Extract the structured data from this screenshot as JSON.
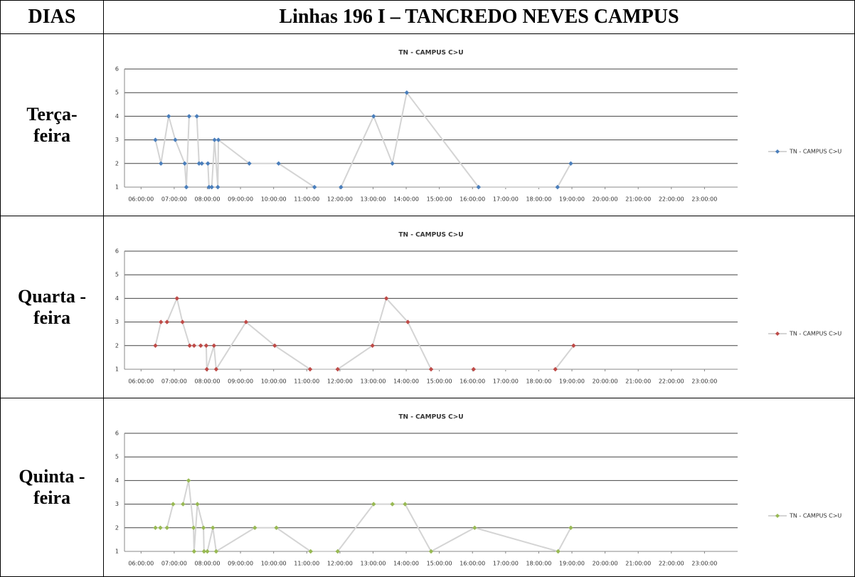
{
  "table": {
    "headers": [
      "DIAS",
      "Linhas 196 I – TANCREDO NEVES CAMPUS"
    ],
    "days": [
      "Terça-feira",
      "Quarta -feira",
      "Quinta -feira"
    ]
  },
  "chart_data": [
    {
      "type": "line",
      "title": "TN - CAMPUS C>U",
      "line_color": "#d4d4d4",
      "grid": true,
      "legend": "right",
      "xlim": [
        "05:30:00",
        "24:00:00"
      ],
      "ylim": [
        1,
        6
      ],
      "yticks": [
        1,
        2,
        3,
        4,
        5,
        6
      ],
      "xticks": [
        "06:00:00",
        "07:00:00",
        "08:00:00",
        "09:00:00",
        "10:00:00",
        "11:00:00",
        "12:00:00",
        "13:00:00",
        "14:00:00",
        "15:00:00",
        "16:00:00",
        "17:00:00",
        "18:00:00",
        "19:00:00",
        "20:00:00",
        "21:00:00",
        "22:00:00",
        "23:00:00"
      ],
      "x": [
        "06:26:00",
        "06:36:00",
        "06:50:00",
        "07:02:00",
        "07:19:00",
        "07:22:00",
        "07:27:00",
        "07:41:00",
        "07:45:00",
        "07:50:00",
        "08:01:00",
        "08:03:00",
        "08:08:00",
        "08:13:00",
        "08:19:00",
        "08:20:00",
        "09:16:00",
        "10:09:00",
        "11:14:00",
        "12:02:00",
        "13:01:00",
        "13:35:00",
        "14:01:00",
        "16:11:00",
        "18:34:00",
        "18:58:00"
      ],
      "series": [
        {
          "name": "TN - CAMPUS C>U",
          "color": "#4a7ebb",
          "values": [
            3,
            2,
            4,
            3,
            2,
            1,
            4,
            4,
            2,
            2,
            2,
            1,
            1,
            3,
            1,
            3,
            2,
            2,
            1,
            1,
            4,
            2,
            5,
            1,
            1,
            2
          ]
        }
      ]
    },
    {
      "type": "line",
      "title": "TN - CAMPUS C>U",
      "line_color": "#d4d4d4",
      "grid": true,
      "legend": "right",
      "xlim": [
        "05:30:00",
        "24:00:00"
      ],
      "ylim": [
        1,
        6
      ],
      "yticks": [
        1,
        2,
        3,
        4,
        5,
        6
      ],
      "xticks": [
        "06:00:00",
        "07:00:00",
        "08:00:00",
        "09:00:00",
        "10:00:00",
        "11:00:00",
        "12:00:00",
        "13:00:00",
        "14:00:00",
        "15:00:00",
        "16:00:00",
        "17:00:00",
        "18:00:00",
        "19:00:00",
        "20:00:00",
        "21:00:00",
        "22:00:00",
        "23:00:00"
      ],
      "x": [
        "06:26:00",
        "06:36:00",
        "06:47:00",
        "07:05:00",
        "07:15:00",
        "07:28:00",
        "07:36:00",
        "07:48:00",
        "07:58:00",
        "07:59:00",
        "08:12:00",
        "08:16:00",
        "09:10:00",
        "10:02:00",
        "11:06:00",
        "11:56:00",
        "12:59:00",
        "13:24:00",
        "14:03:00",
        "14:45:00",
        "16:02:00",
        "18:30:00",
        "19:03:00"
      ],
      "series": [
        {
          "name": "TN - CAMPUS C>U",
          "color": "#be4b48",
          "values": [
            2,
            3,
            3,
            4,
            3,
            2,
            2,
            2,
            2,
            1,
            2,
            1,
            3,
            2,
            1,
            1,
            2,
            4,
            3,
            1,
            1,
            1,
            2
          ]
        }
      ]
    },
    {
      "type": "line",
      "title": "TN - CAMPUS C>U",
      "line_color": "#d4d4d4",
      "grid": true,
      "legend": "right",
      "xlim": [
        "05:30:00",
        "24:00:00"
      ],
      "ylim": [
        1,
        6
      ],
      "yticks": [
        1,
        2,
        3,
        4,
        5,
        6
      ],
      "xticks": [
        "06:00:00",
        "07:00:00",
        "08:00:00",
        "09:00:00",
        "10:00:00",
        "11:00:00",
        "12:00:00",
        "13:00:00",
        "14:00:00",
        "15:00:00",
        "16:00:00",
        "17:00:00",
        "18:00:00",
        "19:00:00",
        "20:00:00",
        "21:00:00",
        "22:00:00",
        "23:00:00"
      ],
      "x": [
        "06:26:00",
        "06:35:00",
        "06:47:00",
        "06:58:00",
        "07:16:00",
        "07:26:00",
        "07:35:00",
        "07:36:00",
        "07:42:00",
        "07:53:00",
        "07:54:00",
        "08:00:00",
        "08:10:00",
        "08:16:00",
        "09:26:00",
        "10:05:00",
        "11:07:00",
        "11:56:00",
        "13:01:00",
        "13:35:00",
        "13:58:00",
        "14:45:00",
        "16:04:00",
        "18:35:00",
        "18:58:00"
      ],
      "series": [
        {
          "name": "TN - CAMPUS C>U",
          "color": "#98b954",
          "values": [
            2,
            2,
            2,
            3,
            3,
            4,
            2,
            1,
            3,
            2,
            1,
            1,
            2,
            1,
            2,
            2,
            1,
            1,
            3,
            3,
            3,
            1,
            2,
            1,
            2
          ]
        }
      ]
    }
  ]
}
